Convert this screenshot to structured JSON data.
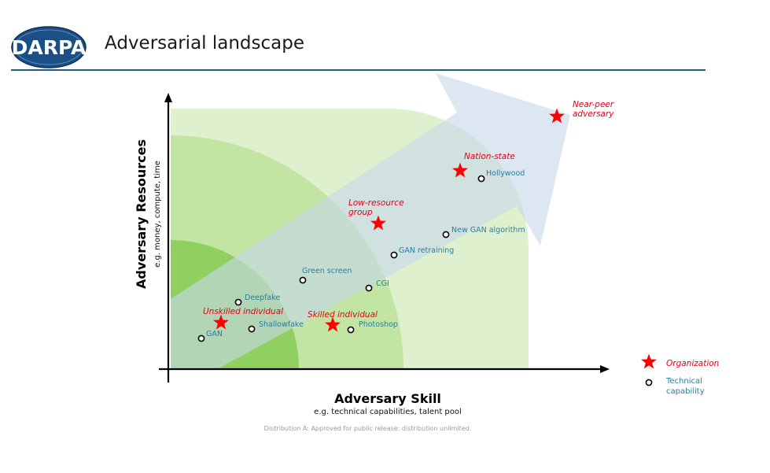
{
  "header": {
    "logo_text": "DARPA",
    "title": "Adversarial landscape"
  },
  "axes": {
    "x_title": "Adversary Skill",
    "x_subtitle": "e.g. technical capabilities, talent pool",
    "y_title": "Adversary Resources",
    "y_subtitle": "e.g. money, compute, time"
  },
  "organizations": [
    {
      "key": "unskilled",
      "label": [
        "Unskilled individual"
      ]
    },
    {
      "key": "skilled",
      "label": [
        "Skilled individual"
      ]
    },
    {
      "key": "lowres",
      "label": [
        "Low-resource",
        "group"
      ]
    },
    {
      "key": "nation",
      "label": [
        "Nation-state"
      ]
    },
    {
      "key": "nearpeer",
      "label": [
        "Near-peer",
        "adversary"
      ]
    }
  ],
  "capabilities": [
    {
      "key": "gan",
      "label": "GAN"
    },
    {
      "key": "deepfake",
      "label": "Deepfake"
    },
    {
      "key": "shallowfake",
      "label": "Shallowfake"
    },
    {
      "key": "greenscreen",
      "label": "Green screen"
    },
    {
      "key": "cgi",
      "label": "CGI"
    },
    {
      "key": "photoshop",
      "label": "Photoshop"
    },
    {
      "key": "ganretrain",
      "label": "GAN retraining"
    },
    {
      "key": "newgan",
      "label": "New GAN algorithm"
    },
    {
      "key": "hollywood",
      "label": "Hollywood"
    }
  ],
  "legend": {
    "organization": "Organization",
    "technical": [
      "Technical",
      "capability"
    ]
  },
  "colors": {
    "organization": "#ff0000",
    "organization_text": "#e3001b",
    "capability_text": "#2a7d9c",
    "arrow": "#c7d9ea",
    "zone_outer": "#dff0cf",
    "zone_middle": "#c3e5a3",
    "zone_inner": "#8fd060",
    "brand_blue": "#1f5a8c"
  },
  "footer": "Distribution A: Approved for public release: distribution unlimited."
}
